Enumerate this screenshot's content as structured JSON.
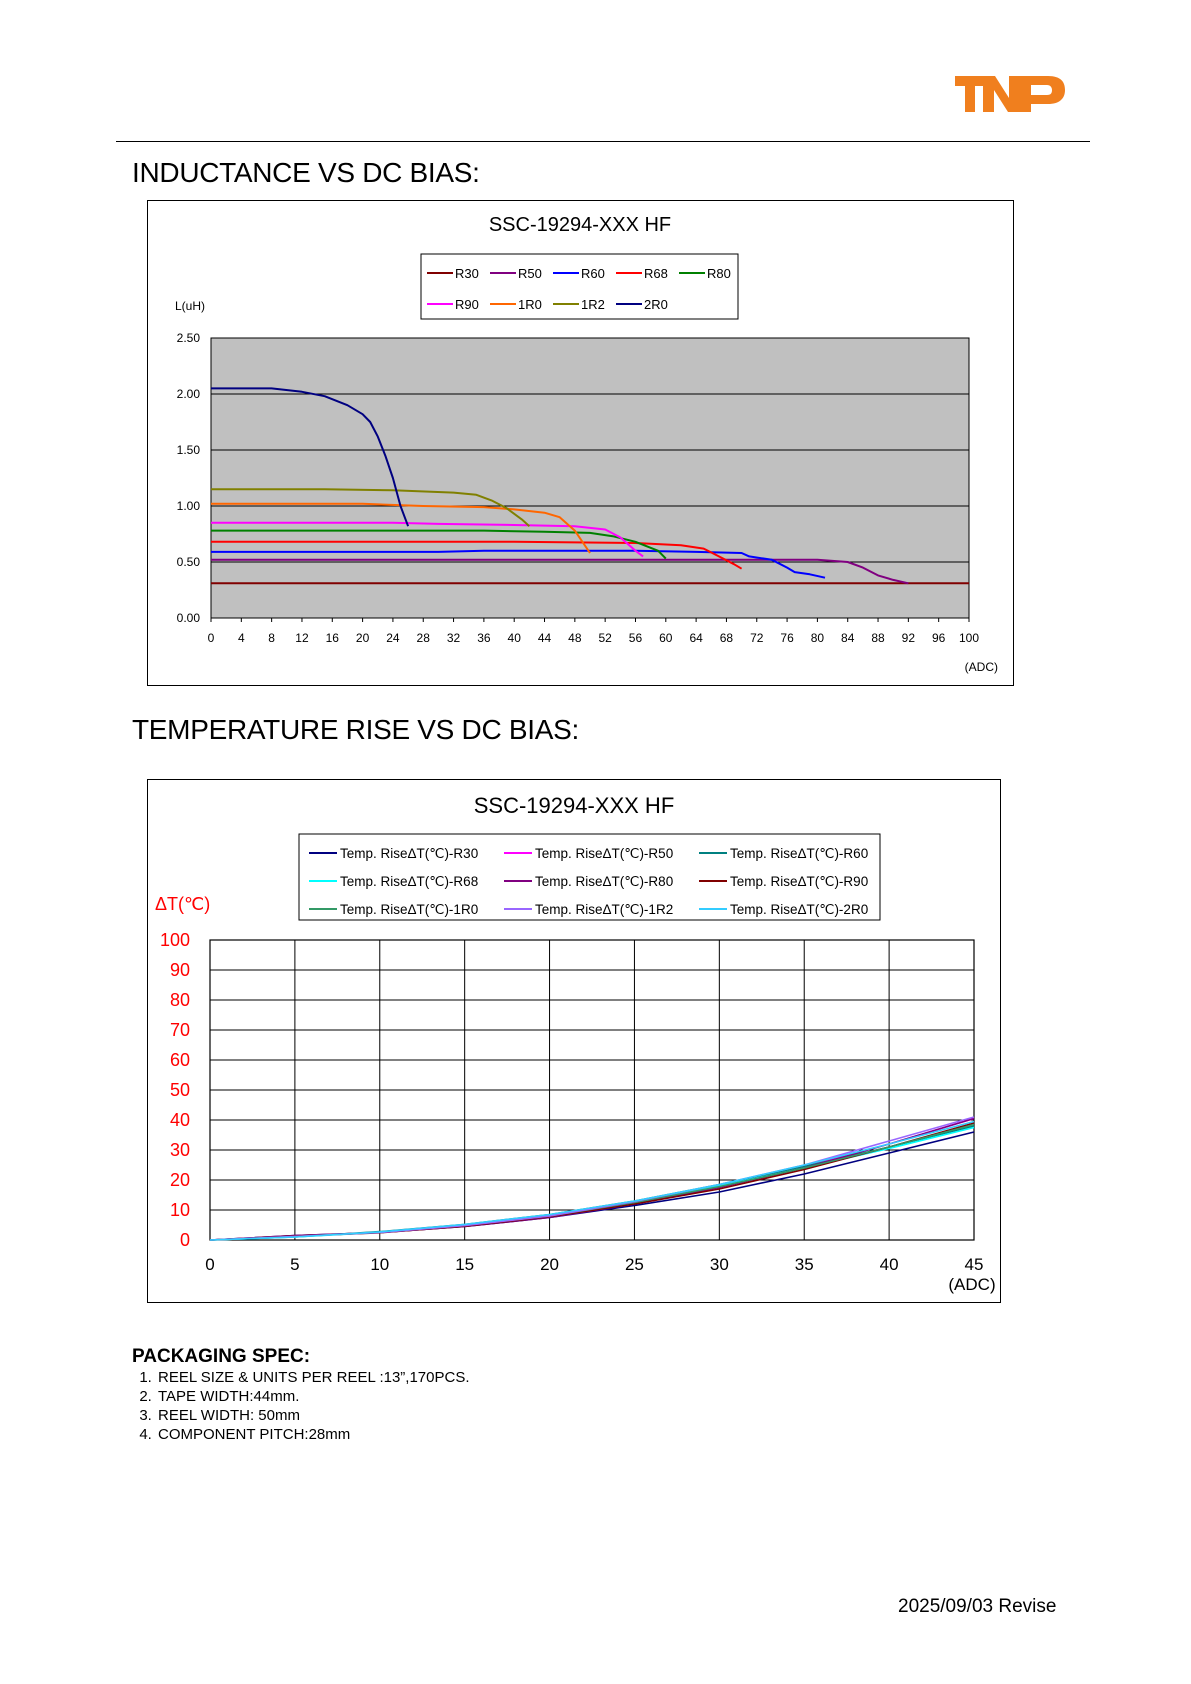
{
  "header": {
    "logo_text": "TNP",
    "logo_color": "#F07F1E"
  },
  "sections": {
    "inductance_title": "INDUCTANCE VS DC BIAS:",
    "temperature_title": "TEMPERATURE RISE VS DC BIAS:"
  },
  "chart_data": [
    {
      "type": "line",
      "title": "SSC-19294-XXX HF",
      "ylabel": "L(uH)",
      "xlabel": "(ADC)",
      "xlim": [
        0,
        100
      ],
      "ylim": [
        0,
        2.5
      ],
      "xticks": [
        "0",
        "4",
        "8",
        "12",
        "16",
        "20",
        "24",
        "28",
        "32",
        "36",
        "40",
        "44",
        "48",
        "52",
        "56",
        "60",
        "64",
        "68",
        "72",
        "76",
        "80",
        "84",
        "88",
        "92",
        "96",
        "100"
      ],
      "yticks": [
        "0.00",
        "0.50",
        "1.00",
        "1.50",
        "2.00",
        "2.50"
      ],
      "grid": "horizontal",
      "plot_background": "#C0C0C0",
      "legend_position": "top-center",
      "series": [
        {
          "name": "R30",
          "color": "#800000",
          "points": [
            [
              0,
              0.31
            ],
            [
              100,
              0.31
            ]
          ]
        },
        {
          "name": "R50",
          "color": "#800080",
          "points": [
            [
              0,
              0.52
            ],
            [
              40,
              0.52
            ],
            [
              70,
              0.52
            ],
            [
              80,
              0.52
            ],
            [
              84,
              0.5
            ],
            [
              86,
              0.45
            ],
            [
              88,
              0.38
            ],
            [
              90,
              0.34
            ],
            [
              92,
              0.31
            ]
          ]
        },
        {
          "name": "R60",
          "color": "#0000FF",
          "points": [
            [
              0,
              0.59
            ],
            [
              30,
              0.59
            ],
            [
              36,
              0.6
            ],
            [
              44,
              0.6
            ],
            [
              56,
              0.6
            ],
            [
              64,
              0.59
            ],
            [
              70,
              0.58
            ],
            [
              71,
              0.55
            ],
            [
              74,
              0.52
            ],
            [
              76,
              0.45
            ],
            [
              77,
              0.41
            ],
            [
              79,
              0.39
            ],
            [
              81,
              0.36
            ]
          ]
        },
        {
          "name": "R68",
          "color": "#FF0000",
          "points": [
            [
              0,
              0.68
            ],
            [
              40,
              0.68
            ],
            [
              56,
              0.67
            ],
            [
              62,
              0.65
            ],
            [
              65,
              0.62
            ],
            [
              67,
              0.55
            ],
            [
              69,
              0.48
            ],
            [
              70,
              0.44
            ]
          ]
        },
        {
          "name": "R80",
          "color": "#008000",
          "points": [
            [
              0,
              0.78
            ],
            [
              36,
              0.78
            ],
            [
              44,
              0.77
            ],
            [
              50,
              0.76
            ],
            [
              53,
              0.73
            ],
            [
              56,
              0.68
            ],
            [
              59,
              0.6
            ],
            [
              60,
              0.53
            ]
          ]
        },
        {
          "name": "R90",
          "color": "#FF00FF",
          "points": [
            [
              0,
              0.85
            ],
            [
              24,
              0.85
            ],
            [
              30,
              0.84
            ],
            [
              40,
              0.83
            ],
            [
              48,
              0.82
            ],
            [
              52,
              0.79
            ],
            [
              54,
              0.72
            ],
            [
              56,
              0.6
            ],
            [
              57,
              0.55
            ]
          ]
        },
        {
          "name": "1R0",
          "color": "#FF6600",
          "points": [
            [
              0,
              1.02
            ],
            [
              20,
              1.02
            ],
            [
              28,
              1.0
            ],
            [
              36,
              0.99
            ],
            [
              40,
              0.97
            ],
            [
              44,
              0.94
            ],
            [
              46,
              0.9
            ],
            [
              48,
              0.78
            ],
            [
              49,
              0.68
            ],
            [
              50,
              0.58
            ]
          ]
        },
        {
          "name": "1R2",
          "color": "#808000",
          "points": [
            [
              0,
              1.15
            ],
            [
              15,
              1.15
            ],
            [
              24,
              1.14
            ],
            [
              32,
              1.12
            ],
            [
              35,
              1.1
            ],
            [
              37,
              1.05
            ],
            [
              39,
              0.98
            ],
            [
              41,
              0.88
            ],
            [
              42,
              0.82
            ]
          ]
        },
        {
          "name": "2R0",
          "color": "#000080",
          "points": [
            [
              0,
              2.05
            ],
            [
              8,
              2.05
            ],
            [
              12,
              2.02
            ],
            [
              15,
              1.98
            ],
            [
              18,
              1.9
            ],
            [
              20,
              1.82
            ],
            [
              21,
              1.75
            ],
            [
              22,
              1.62
            ],
            [
              23,
              1.45
            ],
            [
              24,
              1.25
            ],
            [
              25,
              1.0
            ],
            [
              26,
              0.82
            ]
          ]
        }
      ]
    },
    {
      "type": "line",
      "title": "SSC-19294-XXX HF",
      "ylabel": "ΔT(℃)",
      "xlabel": "(ADC)",
      "xlim": [
        0,
        45
      ],
      "ylim": [
        0,
        100
      ],
      "xticks": [
        "0",
        "5",
        "10",
        "15",
        "20",
        "25",
        "30",
        "35",
        "40",
        "45"
      ],
      "yticks": [
        "0",
        "10",
        "20",
        "30",
        "40",
        "50",
        "60",
        "70",
        "80",
        "90",
        "100"
      ],
      "grid": "both",
      "legend_position": "top-center",
      "series": [
        {
          "name": "Temp. RiseΔT(℃)-R30",
          "color": "#000080",
          "points": [
            [
              0,
              0
            ],
            [
              5,
              1.5
            ],
            [
              10,
              2.5
            ],
            [
              15,
              4.5
            ],
            [
              20,
              7.5
            ],
            [
              25,
              11.5
            ],
            [
              30,
              16
            ],
            [
              35,
              22
            ],
            [
              40,
              29
            ],
            [
              45,
              36
            ]
          ]
        },
        {
          "name": "Temp. RiseΔT(℃)-R50",
          "color": "#FF00FF",
          "points": [
            [
              0,
              0
            ],
            [
              5,
              1.2
            ],
            [
              10,
              2.6
            ],
            [
              15,
              5
            ],
            [
              20,
              8
            ],
            [
              25,
              12.5
            ],
            [
              30,
              18
            ],
            [
              35,
              24.5
            ],
            [
              40,
              32
            ],
            [
              45,
              40.5
            ]
          ]
        },
        {
          "name": "Temp. RiseΔT(℃)-R60",
          "color": "#008080",
          "points": [
            [
              0,
              0
            ],
            [
              5,
              1
            ],
            [
              10,
              2.8
            ],
            [
              15,
              5.2
            ],
            [
              20,
              8.5
            ],
            [
              25,
              13
            ],
            [
              30,
              18.5
            ],
            [
              35,
              24.5
            ],
            [
              40,
              31
            ],
            [
              45,
              38
            ]
          ]
        },
        {
          "name": "Temp. RiseΔT(℃)-R68",
          "color": "#00FFFF",
          "points": [
            [
              0,
              0
            ],
            [
              5,
              1
            ],
            [
              10,
              2.5
            ],
            [
              15,
              5
            ],
            [
              20,
              8.2
            ],
            [
              25,
              12.8
            ],
            [
              30,
              18
            ],
            [
              35,
              24
            ],
            [
              40,
              30.5
            ],
            [
              45,
              37.5
            ]
          ]
        },
        {
          "name": "Temp. RiseΔT(℃)-R80",
          "color": "#800080",
          "points": [
            [
              0,
              0
            ],
            [
              5,
              1.5
            ],
            [
              10,
              2.5
            ],
            [
              15,
              4.5
            ],
            [
              20,
              7.5
            ],
            [
              25,
              12
            ],
            [
              30,
              17.5
            ],
            [
              35,
              24
            ],
            [
              40,
              32
            ],
            [
              45,
              40.5
            ]
          ]
        },
        {
          "name": "Temp. RiseΔT(℃)-R90",
          "color": "#800000",
          "points": [
            [
              0,
              0
            ],
            [
              5,
              1.3
            ],
            [
              10,
              2.4
            ],
            [
              15,
              4.6
            ],
            [
              20,
              7.8
            ],
            [
              25,
              12
            ],
            [
              30,
              17
            ],
            [
              35,
              23.5
            ],
            [
              40,
              31
            ],
            [
              45,
              39
            ]
          ]
        },
        {
          "name": "Temp. RiseΔT(℃)-1R0",
          "color": "#339966",
          "points": [
            [
              0,
              0
            ],
            [
              5,
              1.1
            ],
            [
              10,
              2.6
            ],
            [
              15,
              5
            ],
            [
              20,
              8
            ],
            [
              25,
              12.5
            ],
            [
              30,
              17.8
            ],
            [
              35,
              24
            ],
            [
              40,
              31
            ],
            [
              45,
              38.5
            ]
          ]
        },
        {
          "name": "Temp. RiseΔT(℃)-1R2",
          "color": "#9966FF",
          "points": [
            [
              0,
              0
            ],
            [
              5,
              1.2
            ],
            [
              10,
              2.5
            ],
            [
              15,
              4.8
            ],
            [
              20,
              8
            ],
            [
              25,
              12.8
            ],
            [
              30,
              18.5
            ],
            [
              35,
              25
            ],
            [
              40,
              33
            ],
            [
              45,
              41
            ]
          ]
        },
        {
          "name": "Temp. RiseΔT(℃)-2R0",
          "color": "#33CCFF",
          "points": [
            [
              0,
              0
            ],
            [
              5,
              1
            ],
            [
              10,
              2.7
            ],
            [
              15,
              5.2
            ],
            [
              20,
              8.5
            ],
            [
              25,
              13
            ],
            [
              30,
              18.5
            ],
            [
              35,
              25
            ],
            [
              40,
              32
            ],
            [
              45,
              39.5
            ]
          ]
        }
      ]
    }
  ],
  "packaging": {
    "heading": "PACKAGING SPEC:",
    "items": [
      "REEL SIZE & UNITS PER REEL :13”,170PCS.",
      "TAPE WIDTH:44mm.",
      "REEL WIDTH: 50mm",
      "COMPONENT PITCH:28mm"
    ]
  },
  "footer": {
    "revision": "2025/09/03 Revise"
  }
}
